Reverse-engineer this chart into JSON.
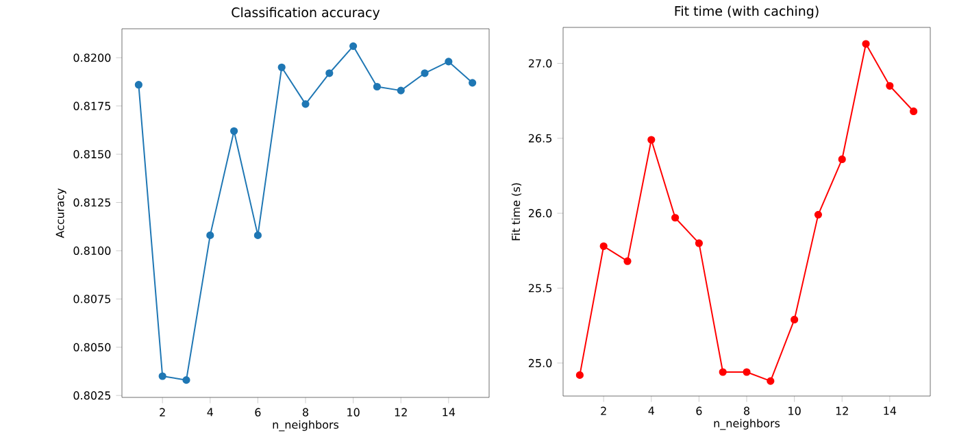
{
  "chart_data": [
    {
      "type": "line",
      "title": "Classification accuracy",
      "xlabel": "n_neighbors",
      "ylabel": "Accuracy",
      "x": [
        1,
        2,
        3,
        4,
        5,
        6,
        7,
        8,
        9,
        10,
        11,
        12,
        13,
        14,
        15
      ],
      "series": [
        {
          "color": "#1f77b4",
          "values": [
            0.8186,
            0.8035,
            0.8033,
            0.8108,
            0.8162,
            0.8108,
            0.8195,
            0.8176,
            0.8192,
            0.8206,
            0.8185,
            0.8183,
            0.8192,
            0.8198,
            0.8187
          ]
        }
      ],
      "xlim": [
        0.3,
        15.7
      ],
      "ylim": [
        0.8024,
        0.8215
      ],
      "xticks": [
        2,
        4,
        6,
        8,
        10,
        12,
        14
      ],
      "yticks": [
        0.8025,
        {
          "value": 0.805,
          "label": "0.8050"
        },
        0.8075,
        {
          "value": 0.81,
          "label": "0.8100"
        },
        0.8125,
        {
          "value": 0.815,
          "label": "0.8150"
        },
        0.8175,
        {
          "value": 0.82,
          "label": "0.8200"
        }
      ],
      "marker": "circle",
      "line_style": "solid",
      "grid": false
    },
    {
      "type": "line",
      "title": "Fit time (with caching)",
      "xlabel": "n_neighbors",
      "ylabel": "Fit time (s)",
      "x": [
        1,
        2,
        3,
        4,
        5,
        6,
        7,
        8,
        9,
        10,
        11,
        12,
        13,
        14,
        15
      ],
      "series": [
        {
          "color": "#ff0000",
          "values": [
            24.92,
            25.78,
            25.68,
            26.49,
            25.97,
            25.8,
            24.94,
            24.94,
            24.88,
            25.29,
            25.99,
            26.36,
            27.13,
            26.85,
            26.68
          ]
        }
      ],
      "xlim": [
        0.3,
        15.7
      ],
      "ylim": [
        24.78,
        27.24
      ],
      "xticks": [
        2,
        4,
        6,
        8,
        10,
        12,
        14
      ],
      "yticks": [
        {
          "value": 25,
          "label": "25.0"
        },
        25.5,
        {
          "value": 26,
          "label": "26.0"
        },
        26.5,
        {
          "value": 27,
          "label": "27.0"
        }
      ],
      "marker": "circle",
      "line_style": "solid",
      "grid": false
    }
  ]
}
